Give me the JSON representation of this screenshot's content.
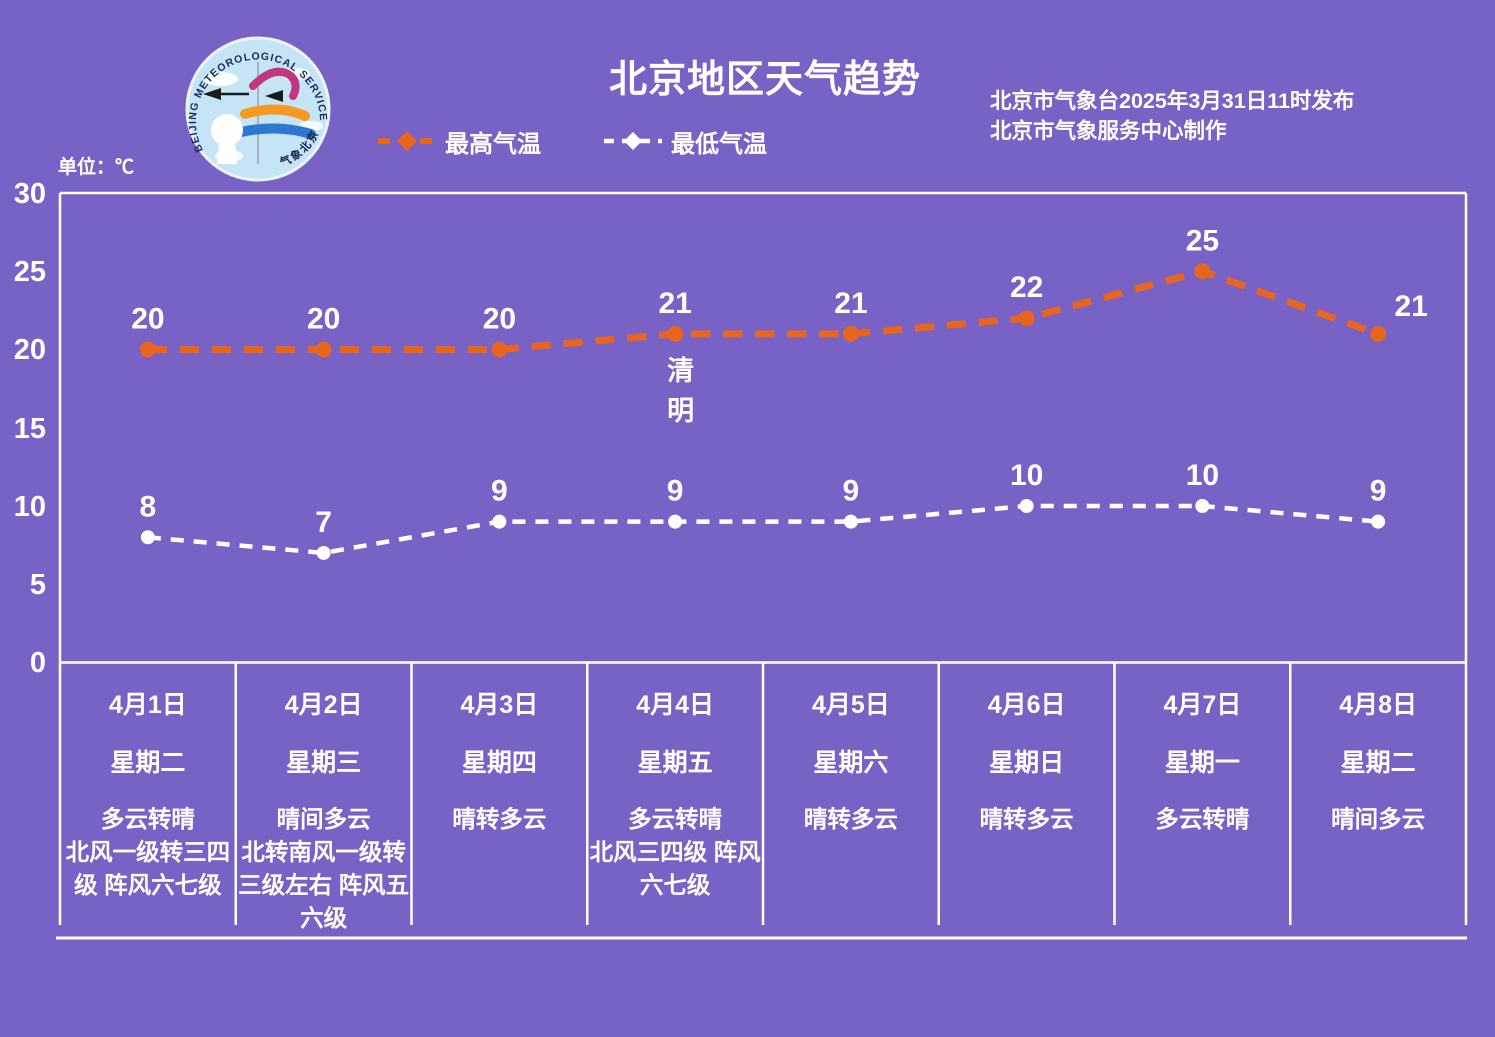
{
  "header": {
    "title": "北京地区天气趋势",
    "publisher_line1": "北京市气象台2025年3月31日11时发布",
    "publisher_line2": "北京市气象服务中心制作",
    "logo": {
      "arc_text": "BEIJING METEOROLOGICAL SERVICE",
      "cn_text": "气象北京"
    }
  },
  "chart_data": {
    "type": "line",
    "title": "北京地区天气趋势",
    "unit_label": "单位：℃",
    "categories": [
      "4月1日",
      "4月2日",
      "4月3日",
      "4月4日",
      "4月5日",
      "4月6日",
      "4月7日",
      "4月8日"
    ],
    "series": [
      {
        "name": "最高气温",
        "color": "#E8651E",
        "style": "dashed",
        "values": [
          20,
          20,
          20,
          21,
          21,
          22,
          25,
          21
        ]
      },
      {
        "name": "最低气温",
        "color": "#FFFFFF",
        "style": "dashed",
        "values": [
          8,
          7,
          9,
          9,
          9,
          10,
          10,
          9
        ]
      }
    ],
    "ylim": [
      0,
      30
    ],
    "yticks": [
      0,
      5,
      10,
      15,
      20,
      25,
      30
    ],
    "grid": false,
    "legend_position": "top",
    "annotation": {
      "text": "清明",
      "x_index": 3
    }
  },
  "table": {
    "days": [
      {
        "date": "4月1日",
        "weekday": "星期二",
        "condition": "多云转晴",
        "wind": "北风一级转三四级 阵风六七级"
      },
      {
        "date": "4月2日",
        "weekday": "星期三",
        "condition": "晴间多云",
        "wind": "北转南风一级转三级左右 阵风五六级"
      },
      {
        "date": "4月3日",
        "weekday": "星期四",
        "condition": "晴转多云",
        "wind": ""
      },
      {
        "date": "4月4日",
        "weekday": "星期五",
        "condition": "多云转晴",
        "wind": "北风三四级 阵风六七级"
      },
      {
        "date": "4月5日",
        "weekday": "星期六",
        "condition": "晴转多云",
        "wind": ""
      },
      {
        "date": "4月6日",
        "weekday": "星期日",
        "condition": "晴转多云",
        "wind": ""
      },
      {
        "date": "4月7日",
        "weekday": "星期一",
        "condition": "多云转晴",
        "wind": ""
      },
      {
        "date": "4月8日",
        "weekday": "星期二",
        "condition": "晴间多云",
        "wind": ""
      }
    ]
  },
  "colors": {
    "background": "#7862C5",
    "max_line": "#E8651E",
    "min_line": "#FFFFFF",
    "text": "#FFFFFF"
  }
}
